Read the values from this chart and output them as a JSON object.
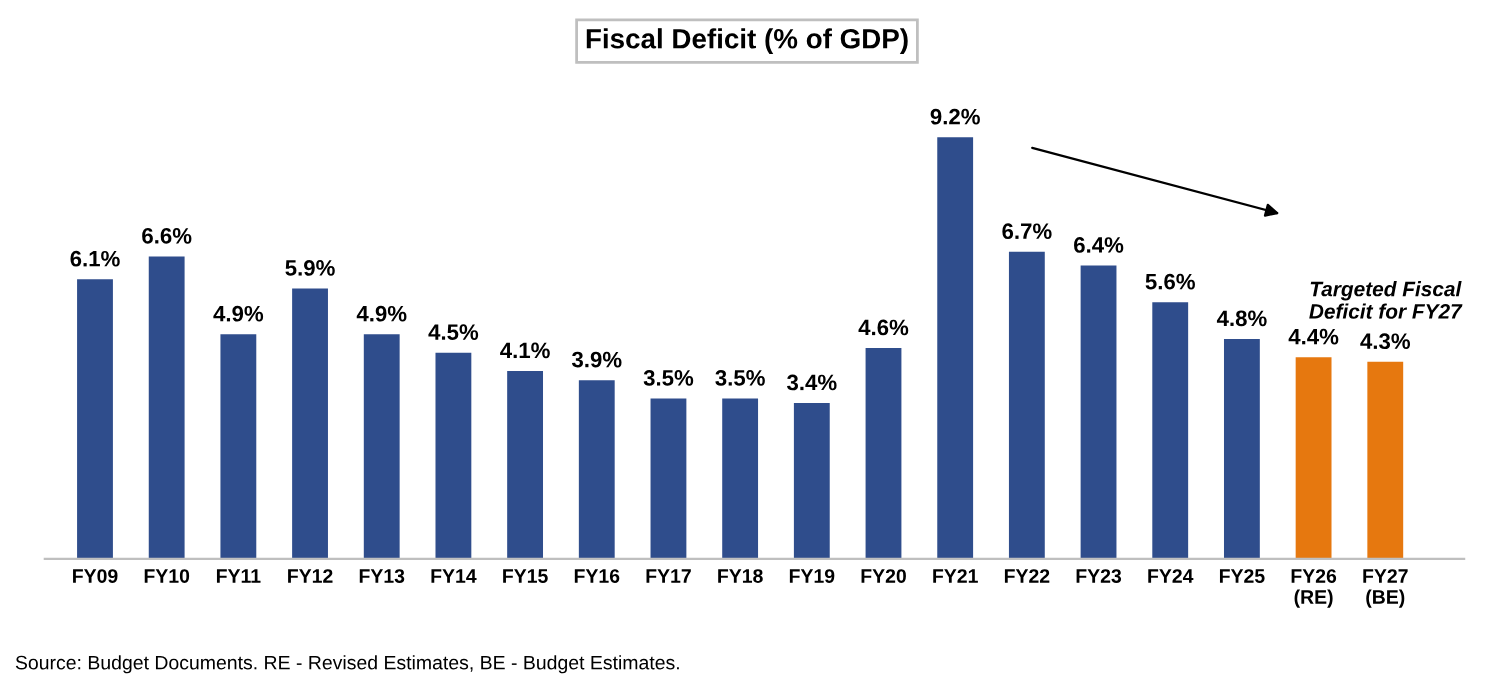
{
  "chart_data": {
    "type": "bar",
    "title": "Fiscal Deficit (% of GDP)",
    "categories": [
      "FY09",
      "FY10",
      "FY11",
      "FY12",
      "FY13",
      "FY14",
      "FY15",
      "FY16",
      "FY17",
      "FY18",
      "FY19",
      "FY20",
      "FY21",
      "FY22",
      "FY23",
      "FY24",
      "FY25",
      "FY26\n(RE)",
      "FY27\n(BE)"
    ],
    "values": [
      6.1,
      6.6,
      4.9,
      5.9,
      4.9,
      4.5,
      4.1,
      3.9,
      3.5,
      3.5,
      3.4,
      4.6,
      9.2,
      6.7,
      6.4,
      5.6,
      4.8,
      4.4,
      4.3
    ],
    "colors": [
      "#2f4d8c",
      "#2f4d8c",
      "#2f4d8c",
      "#2f4d8c",
      "#2f4d8c",
      "#2f4d8c",
      "#2f4d8c",
      "#2f4d8c",
      "#2f4d8c",
      "#2f4d8c",
      "#2f4d8c",
      "#2f4d8c",
      "#2f4d8c",
      "#2f4d8c",
      "#2f4d8c",
      "#2f4d8c",
      "#2f4d8c",
      "#e6780f",
      "#e6780f"
    ],
    "value_labels": [
      "6.1%",
      "6.6%",
      "4.9%",
      "5.9%",
      "4.9%",
      "4.5%",
      "4.1%",
      "3.9%",
      "3.5%",
      "3.5%",
      "3.4%",
      "4.6%",
      "9.2%",
      "6.7%",
      "6.4%",
      "5.6%",
      "4.8%",
      "4.4%",
      "4.3%"
    ],
    "annotations": [
      {
        "text": "Targeted Fiscal\nDeficit for FY27",
        "x": "FY27\n(BE)",
        "y": 4.3
      },
      "Source: Budget Documents. RE - Revised Estimates, BE - Budget Estimates."
    ]
  }
}
